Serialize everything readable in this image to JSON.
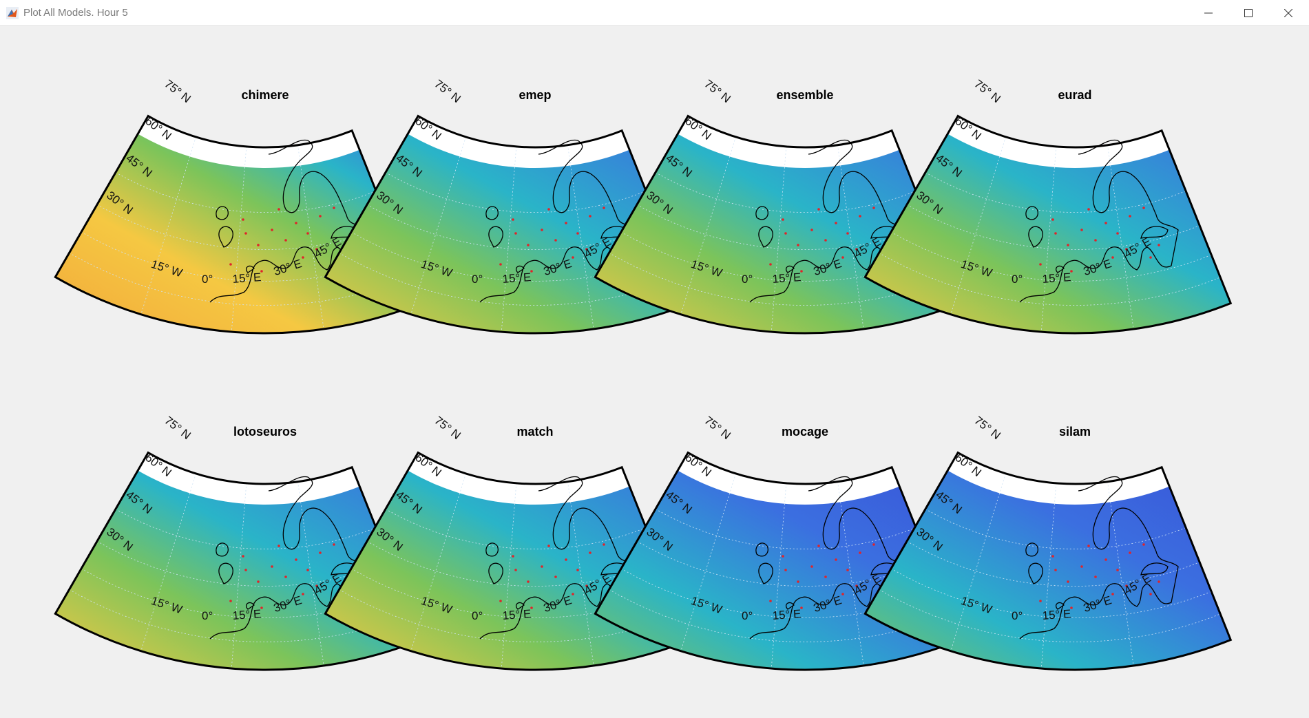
{
  "window": {
    "title": "Plot All Models. Hour 5",
    "icon": "matlab-icon",
    "controls": [
      "minimize-icon",
      "maximize-icon",
      "close-icon"
    ]
  },
  "lat_labels": [
    "75° N",
    "60° N",
    "45° N",
    "30° N"
  ],
  "lon_labels": [
    "15° W",
    "0°",
    "15° E",
    "30° E",
    "45° E"
  ],
  "plots": [
    {
      "title": "chimere",
      "palette": "warm"
    },
    {
      "title": "emep",
      "palette": "mixed"
    },
    {
      "title": "ensemble",
      "palette": "mixed"
    },
    {
      "title": "eurad",
      "palette": "mixed"
    },
    {
      "title": "lotoseuros",
      "palette": "mixed"
    },
    {
      "title": "match",
      "palette": "mixed"
    },
    {
      "title": "mocage",
      "palette": "cool"
    },
    {
      "title": "silam",
      "palette": "cool"
    }
  ],
  "colors": {
    "blue": "#3b6fe0",
    "cyan": "#2ab4c8",
    "green": "#7cc45a",
    "yellow": "#f5c842",
    "orange": "#f2a93b",
    "frame": "#000000"
  }
}
